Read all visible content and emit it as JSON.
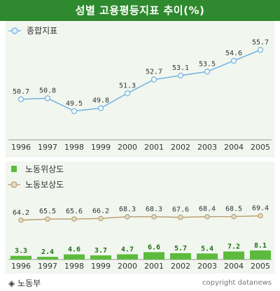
{
  "title": "성별 고용평등지표 추이(%)",
  "footer": {
    "source": "노동부",
    "copyright": "copyright datanews"
  },
  "colors": {
    "title_bg": "#2f8a2f",
    "panel_bg": "#f1f6ef",
    "line1": "#6aaee0",
    "line2": "#b89c6c",
    "bar": "#5cbb3c",
    "bar_label": "#1f6f14",
    "label": "#333333"
  },
  "chart_data": [
    {
      "type": "line",
      "categories": [
        "1996",
        "1997",
        "1998",
        "1999",
        "2000",
        "2001",
        "2002",
        "2003",
        "2004",
        "2005"
      ],
      "series": [
        {
          "name": "종합지표",
          "values": [
            50.7,
            50.8,
            49.5,
            49.8,
            51.3,
            52.7,
            53.1,
            53.5,
            54.6,
            55.7
          ]
        }
      ],
      "legend_position": "top-left"
    },
    {
      "type": "bar+line",
      "categories": [
        "1996",
        "1997",
        "1998",
        "1999",
        "2000",
        "2001",
        "2002",
        "2003",
        "2004",
        "2005"
      ],
      "series": [
        {
          "name": "노동위상도",
          "type": "bar",
          "values": [
            3.3,
            2.4,
            4.6,
            3.7,
            4.7,
            6.6,
            5.7,
            5.4,
            7.2,
            8.1
          ]
        },
        {
          "name": "노동보상도",
          "type": "line",
          "values": [
            64.2,
            65.5,
            65.6,
            66.2,
            68.3,
            68.3,
            67.6,
            68.4,
            68.5,
            69.4
          ]
        }
      ],
      "legend_position": "top-left"
    }
  ]
}
